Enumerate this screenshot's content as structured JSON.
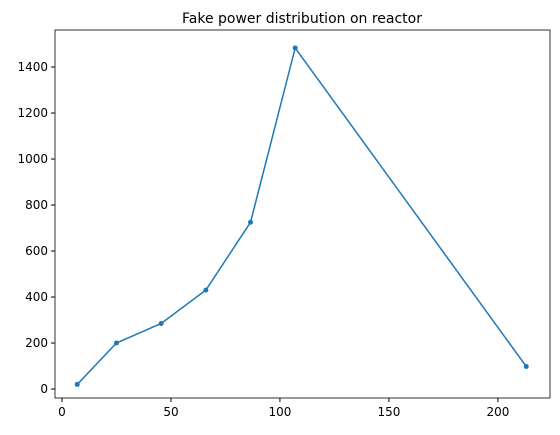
{
  "chart_data": {
    "type": "line",
    "title": "Fake power distribution on reactor",
    "x": [
      7,
      25,
      45.5,
      66,
      86.5,
      107,
      213
    ],
    "series": [
      {
        "color": "#1f77b4",
        "values": [
          20,
          200,
          285,
          430,
          725,
          1483,
          98
        ]
      }
    ],
    "xlim": [
      -3.2,
      223.9
    ],
    "ylim": [
      -39,
      1561
    ],
    "xticks": [
      0,
      50,
      100,
      150,
      200
    ],
    "yticks": [
      0,
      200,
      400,
      600,
      800,
      1000,
      1200,
      1400
    ]
  }
}
